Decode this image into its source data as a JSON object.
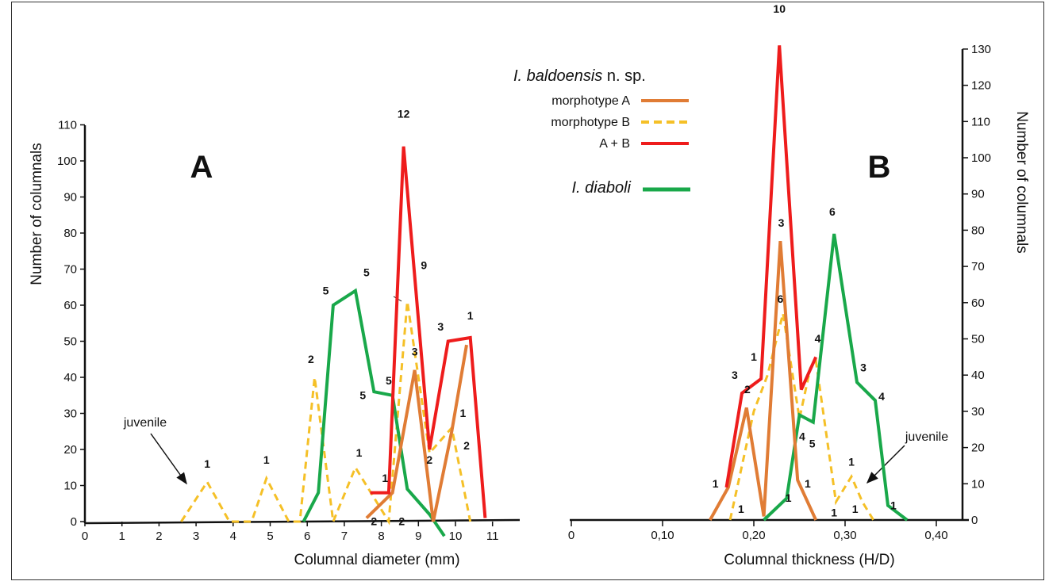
{
  "colors": {
    "morphotype_a": "#e07c35",
    "morphotype_b": "#f5c027",
    "a_plus_b": "#ee1c1c",
    "diaboli": "#19a84a"
  },
  "legend": {
    "species_italic": "I. baldoensis",
    "species_suffix": " n. sp.",
    "morph_a": "morphotype A",
    "morph_b": "morphotype B",
    "a_plus_b": "A + B",
    "diaboli": "I. diaboli"
  },
  "chart_data": [
    {
      "type": "line",
      "panel_label": "A",
      "xlabel": "Columnal diameter (mm)",
      "ylabel": "Number of columnals",
      "xlim": [
        0,
        12
      ],
      "ylim": [
        0,
        110
      ],
      "x_ticks": [
        "0",
        "1",
        "2",
        "3",
        "4",
        "5",
        "6",
        "7",
        "8",
        "9",
        "10",
        "11"
      ],
      "y_ticks": [
        "0",
        "10",
        "20",
        "30",
        "40",
        "50",
        "60",
        "70",
        "80",
        "90",
        "100",
        "110"
      ],
      "annotation": "juvenile",
      "series": [
        {
          "name": "morphotype B",
          "color_key": "morphotype_b",
          "dashed": true,
          "points": [
            [
              2.6,
              0
            ],
            [
              3.3,
              11
            ],
            [
              3.9,
              0
            ],
            [
              4.5,
              0
            ],
            [
              4.9,
              12
            ],
            [
              5.5,
              0
            ],
            [
              5.8,
              0
            ],
            [
              6.2,
              40
            ],
            [
              6.7,
              0
            ],
            [
              7.3,
              15
            ],
            [
              7.9,
              5
            ],
            [
              8.2,
              0
            ],
            [
              8.7,
              61
            ],
            [
              9.3,
              19
            ],
            [
              9.9,
              26
            ],
            [
              10.4,
              0
            ]
          ]
        },
        {
          "name": "I. diaboli",
          "color_key": "diaboli",
          "points": [
            [
              5.9,
              0
            ],
            [
              6.3,
              8
            ],
            [
              6.7,
              60
            ],
            [
              7.3,
              64
            ],
            [
              7.8,
              36
            ],
            [
              8.3,
              35
            ],
            [
              8.7,
              9
            ],
            [
              9.3,
              2
            ],
            [
              9.7,
              -4
            ]
          ]
        },
        {
          "name": "morphotype A",
          "color_key": "morphotype_a",
          "points": [
            [
              7.6,
              1
            ],
            [
              8.3,
              8
            ],
            [
              8.9,
              42
            ],
            [
              9.4,
              0
            ],
            [
              9.9,
              25
            ],
            [
              10.3,
              49
            ]
          ]
        },
        {
          "name": "A + B",
          "color_key": "a_plus_b",
          "points": [
            [
              7.7,
              8
            ],
            [
              8.2,
              8
            ],
            [
              8.6,
              104
            ],
            [
              9.3,
              20
            ],
            [
              9.8,
              50
            ],
            [
              10.4,
              51
            ],
            [
              10.8,
              1
            ]
          ]
        }
      ],
      "labels": [
        {
          "text": "1",
          "x": 3.3,
          "y": 15
        },
        {
          "text": "1",
          "x": 4.9,
          "y": 16
        },
        {
          "text": "2",
          "x": 6.1,
          "y": 44
        },
        {
          "text": "1",
          "x": 7.4,
          "y": 18
        },
        {
          "text": "2",
          "x": 7.8,
          "y": -1
        },
        {
          "text": "1",
          "x": 8.1,
          "y": 11
        },
        {
          "text": "2",
          "x": 8.55,
          "y": -1
        },
        {
          "text": "5",
          "x": 6.5,
          "y": 63
        },
        {
          "text": "5",
          "x": 7.6,
          "y": 68
        },
        {
          "text": "5",
          "x": 7.5,
          "y": 34
        },
        {
          "text": "5",
          "x": 8.2,
          "y": 38
        },
        {
          "text": "12",
          "x": 8.6,
          "y": 112
        },
        {
          "text": "9",
          "x": 9.15,
          "y": 70
        },
        {
          "text": "3",
          "x": 8.9,
          "y": 46
        },
        {
          "text": "2",
          "x": 9.3,
          "y": 16
        },
        {
          "text": "3",
          "x": 9.6,
          "y": 53
        },
        {
          "text": "1",
          "x": 10.4,
          "y": 56
        },
        {
          "text": "1",
          "x": 10.2,
          "y": 29
        },
        {
          "text": "2",
          "x": 10.3,
          "y": 20
        }
      ]
    },
    {
      "type": "line",
      "panel_label": "B",
      "xlabel": "Columnal thickness (H/D)",
      "ylabel": "Number of columnals",
      "xlim": [
        0,
        0.43
      ],
      "ylim": [
        0,
        130
      ],
      "x_ticks": [
        "0",
        "0,10",
        "0,20",
        "0,30",
        "0,40"
      ],
      "y_ticks": [
        "0",
        "10",
        "20",
        "30",
        "40",
        "50",
        "60",
        "70",
        "80",
        "90",
        "100",
        "110",
        "120",
        "130"
      ],
      "annotation": "juvenile",
      "series": [
        {
          "name": "morphotype B",
          "color_key": "morphotype_b",
          "dashed": true,
          "points": [
            [
              0.174,
              0
            ],
            [
              0.2,
              30
            ],
            [
              0.215,
              40
            ],
            [
              0.232,
              57
            ],
            [
              0.25,
              28
            ],
            [
              0.262,
              42
            ],
            [
              0.268,
              44
            ],
            [
              0.29,
              5
            ],
            [
              0.307,
              12
            ],
            [
              0.319,
              5
            ],
            [
              0.331,
              0
            ]
          ]
        },
        {
          "name": "I. diaboli",
          "color_key": "diaboli",
          "points": [
            [
              0.211,
              0
            ],
            [
              0.236,
              6
            ],
            [
              0.25,
              29
            ],
            [
              0.265,
              27
            ],
            [
              0.288,
              79
            ],
            [
              0.313,
              38
            ],
            [
              0.333,
              33
            ],
            [
              0.347,
              4
            ],
            [
              0.368,
              0
            ]
          ]
        },
        {
          "name": "morphotype A",
          "color_key": "morphotype_a",
          "points": [
            [
              0.152,
              0
            ],
            [
              0.172,
              9
            ],
            [
              0.192,
              31
            ],
            [
              0.211,
              1
            ],
            [
              0.229,
              77
            ],
            [
              0.248,
              11
            ],
            [
              0.268,
              0
            ]
          ]
        },
        {
          "name": "A + B",
          "color_key": "a_plus_b",
          "points": [
            [
              0.17,
              9
            ],
            [
              0.187,
              35
            ],
            [
              0.208,
              39
            ],
            [
              0.228,
              131
            ],
            [
              0.252,
              36
            ],
            [
              0.268,
              45
            ]
          ]
        }
      ],
      "labels": [
        {
          "text": "1",
          "x": 0.158,
          "y": 9
        },
        {
          "text": "1",
          "x": 0.186,
          "y": 2
        },
        {
          "text": "2",
          "x": 0.193,
          "y": 35
        },
        {
          "text": "3",
          "x": 0.179,
          "y": 39
        },
        {
          "text": "1",
          "x": 0.2,
          "y": 44
        },
        {
          "text": "10",
          "x": 0.228,
          "y": 140
        },
        {
          "text": "3",
          "x": 0.23,
          "y": 81
        },
        {
          "text": "6",
          "x": 0.229,
          "y": 60
        },
        {
          "text": "4",
          "x": 0.27,
          "y": 49
        },
        {
          "text": "4",
          "x": 0.253,
          "y": 22
        },
        {
          "text": "5",
          "x": 0.264,
          "y": 20
        },
        {
          "text": "1",
          "x": 0.238,
          "y": 5
        },
        {
          "text": "1",
          "x": 0.259,
          "y": 9
        },
        {
          "text": "6",
          "x": 0.286,
          "y": 84
        },
        {
          "text": "3",
          "x": 0.32,
          "y": 41
        },
        {
          "text": "4",
          "x": 0.34,
          "y": 33
        },
        {
          "text": "1",
          "x": 0.353,
          "y": 3
        },
        {
          "text": "1",
          "x": 0.288,
          "y": 1
        },
        {
          "text": "1",
          "x": 0.307,
          "y": 15
        },
        {
          "text": "1",
          "x": 0.311,
          "y": 2
        }
      ]
    }
  ]
}
